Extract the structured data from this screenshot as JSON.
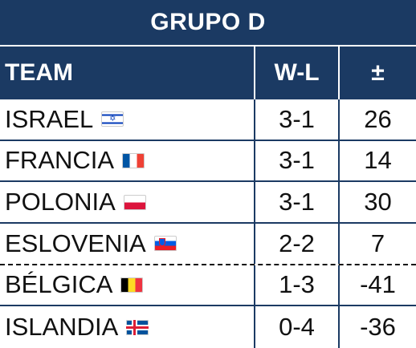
{
  "title": "GRUPO D",
  "headers": {
    "team": "TEAM",
    "wl": "W-L",
    "diff": "±"
  },
  "colors": {
    "header_bg": "#1b3a63",
    "header_text": "#ffffff",
    "body_text": "#111111"
  },
  "rows": [
    {
      "team": "ISRAEL",
      "flag": "israel-flag-icon",
      "wl": "3-1",
      "diff": "26"
    },
    {
      "team": "FRANCIA",
      "flag": "france-flag-icon",
      "wl": "3-1",
      "diff": "14"
    },
    {
      "team": "POLONIA",
      "flag": "poland-flag-icon",
      "wl": "3-1",
      "diff": "30"
    },
    {
      "team": "ESLOVENIA",
      "flag": "slovenia-flag-icon",
      "wl": "2-2",
      "diff": "7"
    },
    {
      "team": "BÉLGICA",
      "flag": "belgium-flag-icon",
      "wl": "1-3",
      "diff": "-41"
    },
    {
      "team": "ISLANDIA",
      "flag": "iceland-flag-icon",
      "wl": "0-4",
      "diff": "-36"
    }
  ]
}
